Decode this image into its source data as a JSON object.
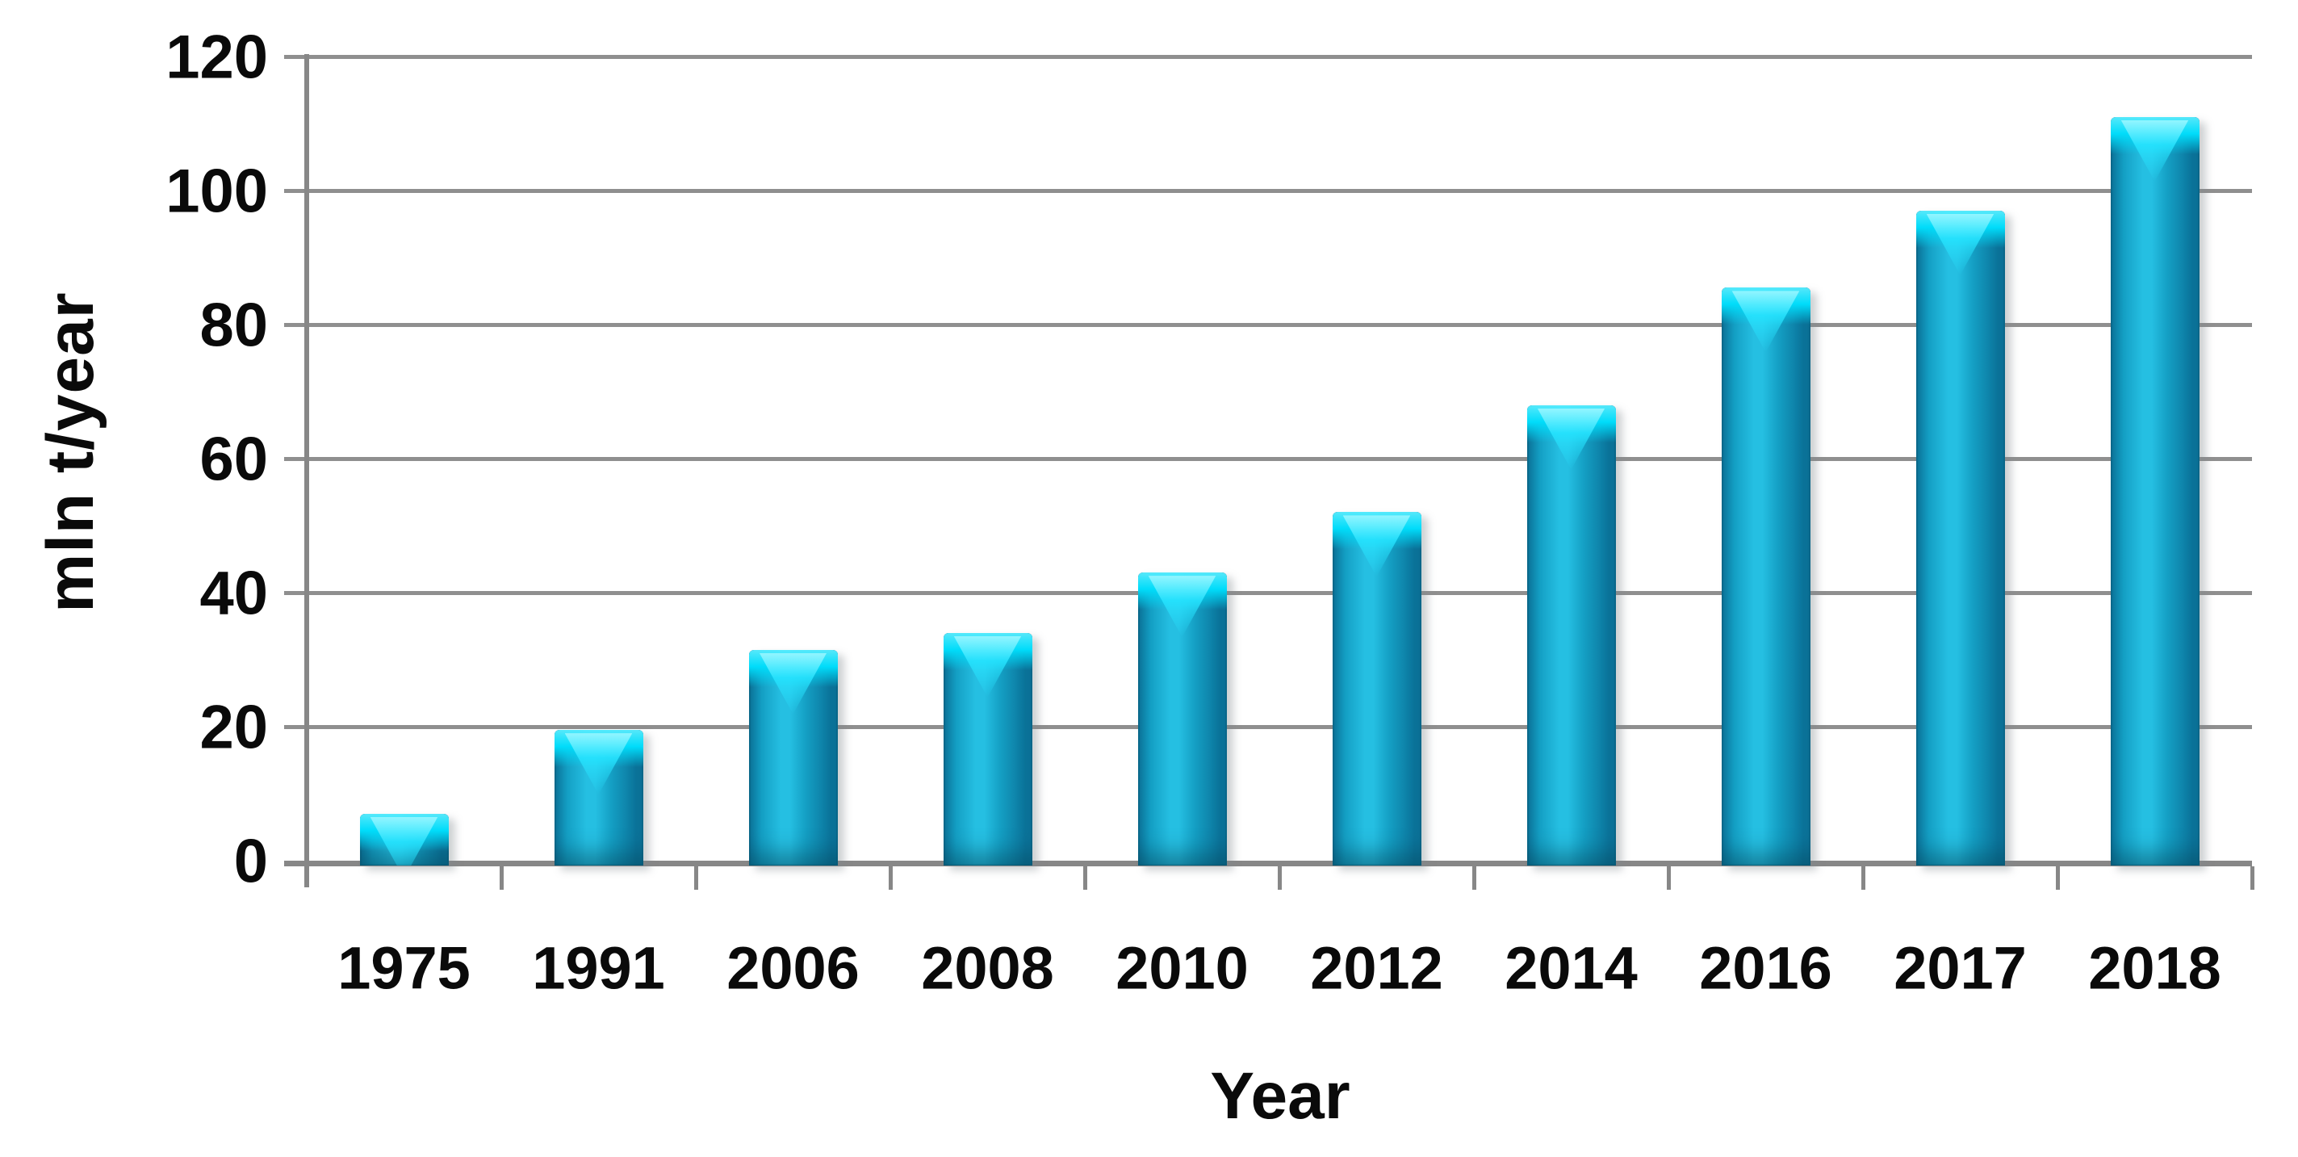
{
  "chart_data": {
    "type": "bar",
    "title": "",
    "categories": [
      "1975",
      "1991",
      "2006",
      "2008",
      "2010",
      "2012",
      "2014",
      "2016",
      "2017",
      "2018"
    ],
    "values": [
      7,
      19.5,
      31.5,
      34,
      43,
      52,
      68,
      85.5,
      97,
      111
    ],
    "xlabel": "Year",
    "ylabel": "mln t/year",
    "ylim": [
      0,
      120
    ],
    "yticks": [
      0,
      20,
      40,
      60,
      80,
      100,
      120
    ],
    "grid": true,
    "legend": "none",
    "bar_count": 10
  },
  "colors": {
    "background": "#ffffff",
    "text": "#0a0a0a",
    "gridline": "#8f8f8f",
    "axis": "#878787",
    "bar_body": "#149fc4",
    "bar_light": "#25bfe2",
    "bar_dark": "#0b749b",
    "bar_highlight": "#00dcfa"
  }
}
